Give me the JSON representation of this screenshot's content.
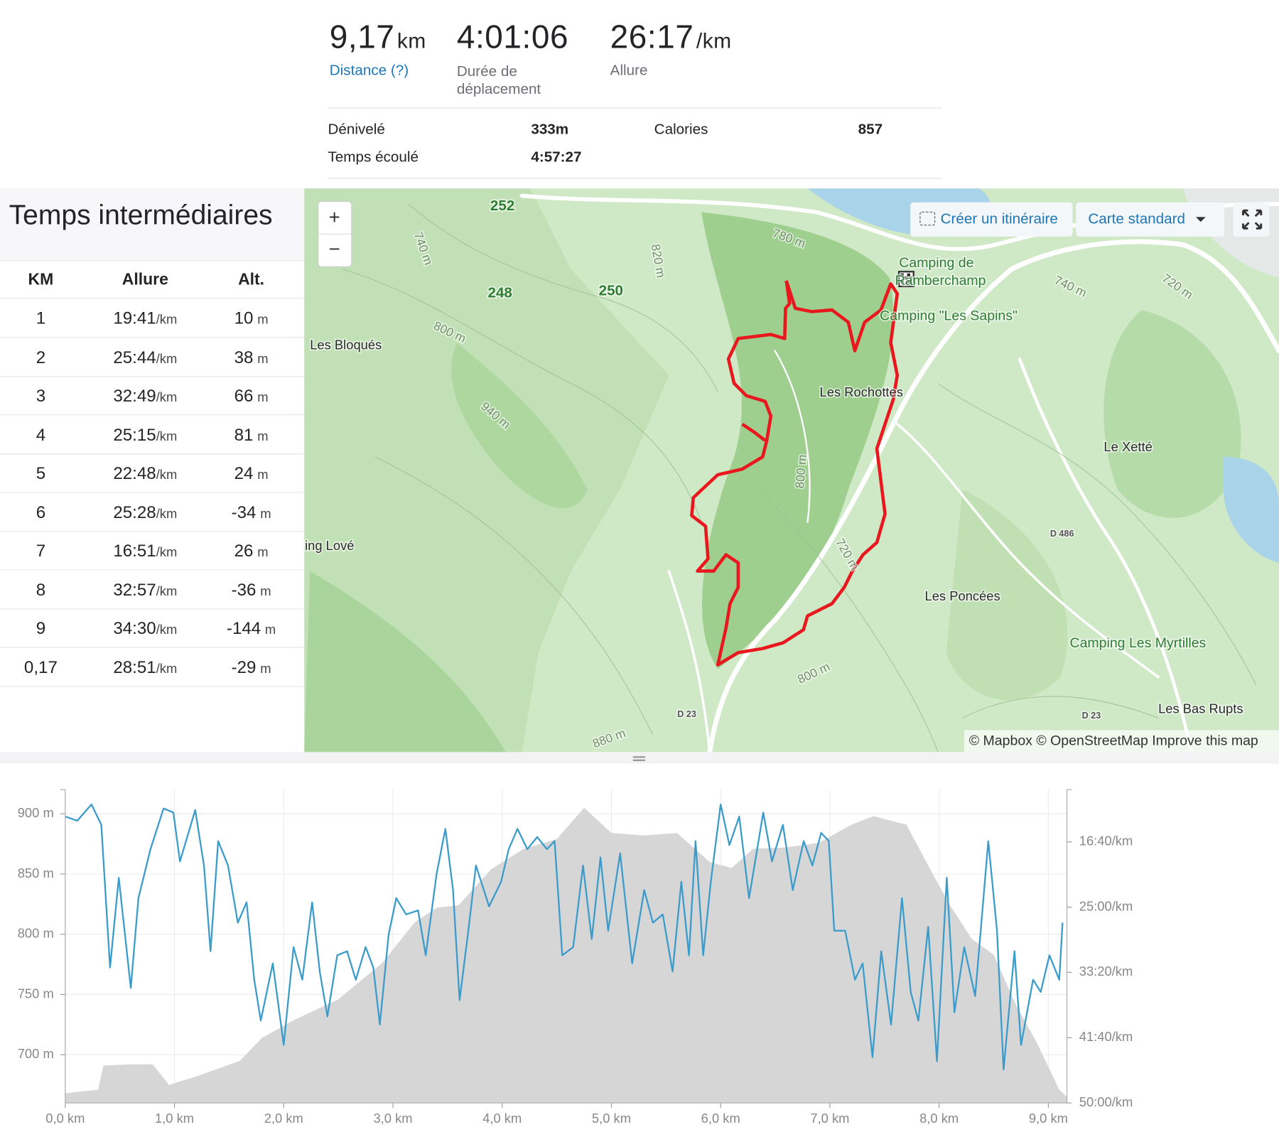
{
  "stats": [
    {
      "value": "9,17",
      "unit": "km",
      "label": "Distance (?)"
    },
    {
      "value": "4:01:06",
      "label": "Durée de déplacement"
    },
    {
      "value": "26:17",
      "unit": "/km",
      "label": "Allure"
    }
  ],
  "details": [
    {
      "label": "Dénivelé",
      "value": "333m"
    },
    {
      "label": "Calories",
      "value": "857"
    },
    {
      "label": "Temps écoulé",
      "value": "4:57:27"
    }
  ],
  "splits": {
    "title": "Temps intermédiaires",
    "headers": [
      "KM",
      "Allure",
      "Alt."
    ],
    "pace_unit": "/km",
    "alt_unit": "m",
    "rows": [
      [
        "1",
        "19:41",
        "10"
      ],
      [
        "2",
        "25:44",
        "38"
      ],
      [
        "3",
        "32:49",
        "66"
      ],
      [
        "4",
        "25:15",
        "81"
      ],
      [
        "5",
        "22:48",
        "24"
      ],
      [
        "6",
        "25:28",
        "-34"
      ],
      [
        "7",
        "16:51",
        "26"
      ],
      [
        "8",
        "32:57",
        "-36"
      ],
      [
        "9",
        "34:30",
        "-144"
      ],
      [
        "0,17",
        "28:51",
        "-29"
      ]
    ]
  },
  "map": {
    "zoom_in": "+",
    "zoom_out": "−",
    "create_route": "Créer un itinéraire",
    "map_style": "Carte standard",
    "attribution": "© Mapbox © OpenStreetMap Improve this map",
    "labels": [
      "252",
      "248",
      "250",
      "Les Bloqués",
      "ing Lové",
      "Les Rochottes",
      "Camping de",
      "Ramberchamp",
      "Camping \"Les Sapins\"",
      "Le Xetté",
      "Les Poncées",
      "Camping Les Myrtilles",
      "Les Bas Rupts",
      "780 m",
      "740 m",
      "820 m",
      "800 m",
      "940 m",
      "800 m",
      "720 m",
      "800 m",
      "880 m",
      "740 m",
      "720 m",
      "D 486",
      "D 23",
      "D 23"
    ]
  },
  "chart_data": {
    "type": "combo",
    "xlim": [
      0,
      9.17
    ],
    "xticks": [
      {
        "value": 0,
        "label": "0,0 km"
      },
      {
        "value": 1,
        "label": "1,0 km"
      },
      {
        "value": 2,
        "label": "2,0 km"
      },
      {
        "value": 3,
        "label": "3,0 km"
      },
      {
        "value": 4,
        "label": "4,0 km"
      },
      {
        "value": 5,
        "label": "5,0 km"
      },
      {
        "value": 6,
        "label": "6,0 km"
      },
      {
        "value": 7,
        "label": "7,0 km"
      },
      {
        "value": 8,
        "label": "8,0 km"
      },
      {
        "value": 9,
        "label": "9,0 km"
      }
    ],
    "ylim": [
      660,
      920
    ],
    "yticks": [
      {
        "value": 700,
        "label": "700 m"
      },
      {
        "value": 750,
        "label": "750 m"
      },
      {
        "value": 800,
        "label": "800 m"
      },
      {
        "value": 850,
        "label": "850 m"
      },
      {
        "value": 900,
        "label": "900 m"
      }
    ],
    "y2lim": [
      3000,
      600
    ],
    "y2ticks": [
      {
        "value": 1000,
        "label": "16:40/km"
      },
      {
        "value": 1500,
        "label": "25:00/km"
      },
      {
        "value": 2000,
        "label": "33:20/km"
      },
      {
        "value": 2500,
        "label": "41:40/km"
      },
      {
        "value": 3000,
        "label": "50:00/km"
      }
    ],
    "grid": true,
    "series": [
      {
        "type": "area",
        "color": "#d6d6d6",
        "x": [
          0,
          0.3,
          0.35,
          0.6,
          0.8,
          0.95,
          1.2,
          1.6,
          1.8,
          2.1,
          2.5,
          2.9,
          3.2,
          3.4,
          3.6,
          3.9,
          4.2,
          4.5,
          4.75,
          5.0,
          5.3,
          5.6,
          5.9,
          6.1,
          6.3,
          6.6,
          6.9,
          7.2,
          7.4,
          7.7,
          7.9,
          8.1,
          8.3,
          8.5,
          8.7,
          8.9,
          9.1,
          9.17
        ],
        "values": [
          668,
          671,
          691,
          692,
          692,
          675,
          682,
          695,
          714,
          729,
          746,
          776,
          810,
          822,
          824,
          854,
          871,
          879,
          905,
          884,
          882,
          884,
          860,
          855,
          871,
          872,
          876,
          891,
          898,
          891,
          857,
          824,
          796,
          783,
          742,
          709,
          671,
          665
        ]
      },
      {
        "type": "line",
        "color": "#3b9ccc",
        "axis": "y2",
        "x": [
          0,
          0.11,
          0.24,
          0.33,
          0.41,
          0.49,
          0.6,
          0.67,
          0.78,
          0.9,
          0.99,
          1.05,
          1.19,
          1.27,
          1.33,
          1.4,
          1.49,
          1.58,
          1.66,
          1.73,
          1.79,
          1.9,
          2.0,
          2.09,
          2.17,
          2.26,
          2.33,
          2.4,
          2.49,
          2.58,
          2.66,
          2.75,
          2.82,
          2.88,
          2.96,
          3.03,
          3.12,
          3.23,
          3.3,
          3.4,
          3.48,
          3.55,
          3.61,
          3.69,
          3.76,
          3.88,
          3.99,
          4.06,
          4.14,
          4.23,
          4.32,
          4.41,
          4.48,
          4.55,
          4.65,
          4.74,
          4.82,
          4.9,
          4.97,
          5.08,
          5.19,
          5.3,
          5.38,
          5.47,
          5.56,
          5.64,
          5.71,
          5.77,
          5.84,
          5.91,
          6.0,
          6.08,
          6.17,
          6.26,
          6.39,
          6.47,
          6.57,
          6.66,
          6.76,
          6.84,
          6.92,
          6.99,
          7.04,
          7.14,
          7.23,
          7.3,
          7.39,
          7.47,
          7.56,
          7.66,
          7.74,
          7.81,
          7.9,
          7.98,
          8.07,
          8.14,
          8.23,
          8.33,
          8.45,
          8.53,
          8.59,
          8.69,
          8.75,
          8.86,
          8.93,
          9.01,
          9.1,
          9.13
        ],
        "values": [
          806,
          838,
          713,
          869,
          1963,
          1275,
          2119,
          1431,
          1056,
          744,
          775,
          1150,
          756,
          1181,
          1838,
          994,
          1181,
          1619,
          1463,
          2056,
          2369,
          1931,
          2556,
          1806,
          2056,
          1463,
          1994,
          2338,
          1869,
          1838,
          2056,
          1806,
          1963,
          2400,
          1713,
          1431,
          1556,
          1525,
          1869,
          1244,
          900,
          1369,
          2213,
          1681,
          1181,
          1494,
          1306,
          1056,
          900,
          1056,
          963,
          1056,
          994,
          1869,
          1806,
          1181,
          1744,
          1119,
          1681,
          1088,
          1931,
          1369,
          1619,
          1556,
          1994,
          1306,
          1869,
          994,
          1869,
          1306,
          713,
          1025,
          806,
          1431,
          775,
          1150,
          869,
          1369,
          994,
          1181,
          931,
          994,
          1681,
          1681,
          2056,
          1931,
          2650,
          1838,
          2400,
          1431,
          2150,
          2369,
          1650,
          2681,
          1275,
          2306,
          1806,
          2181,
          994,
          1681,
          2744,
          1838,
          2556,
          2056,
          2150,
          1869,
          2056,
          1619
        ]
      }
    ]
  }
}
